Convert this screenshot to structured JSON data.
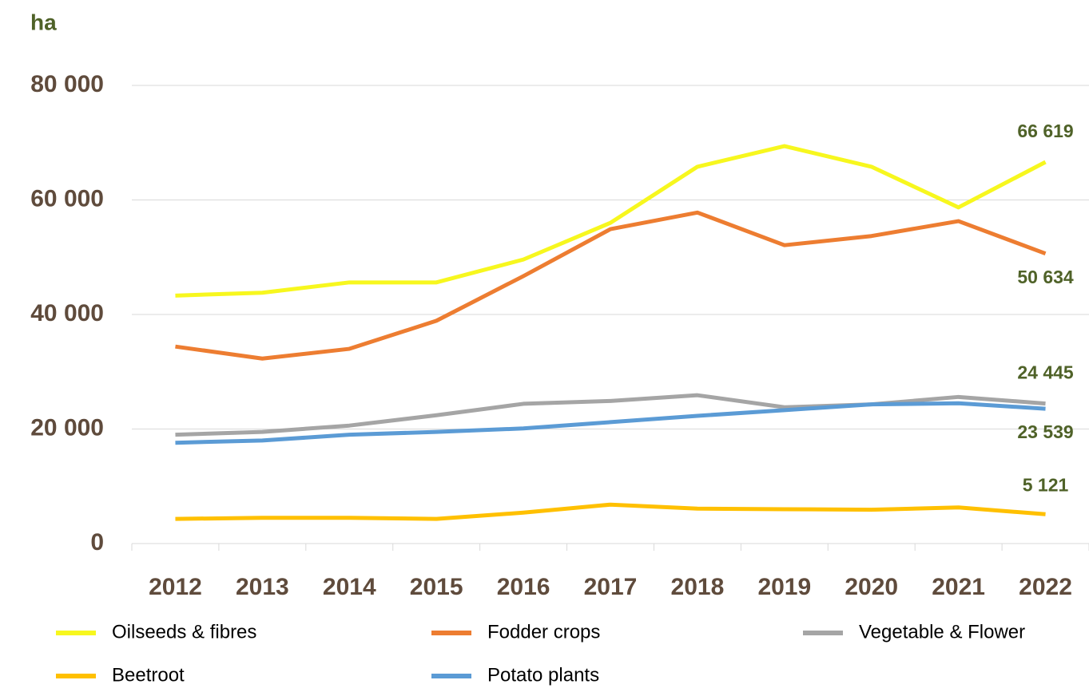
{
  "chart_data": {
    "type": "line",
    "y_axis_label": "ha",
    "categories": [
      "2012",
      "2013",
      "2014",
      "2015",
      "2016",
      "2017",
      "2018",
      "2019",
      "2020",
      "2021",
      "2022"
    ],
    "series": [
      {
        "name": "Oilseeds & fibres",
        "color": "#f7f71e",
        "values": [
          43300,
          43800,
          45600,
          45600,
          49600,
          56000,
          65800,
          69400,
          65800,
          58700,
          66619
        ],
        "value_labels": [
          null,
          null,
          null,
          null,
          null,
          null,
          null,
          null,
          null,
          null,
          "66 619"
        ]
      },
      {
        "name": "Fodder crops",
        "color": "#ed7d31",
        "values": [
          34400,
          32300,
          34000,
          38900,
          46700,
          54900,
          57800,
          52100,
          53700,
          56300,
          50634
        ],
        "value_labels": [
          null,
          null,
          null,
          null,
          null,
          null,
          null,
          null,
          null,
          null,
          "50 634"
        ]
      },
      {
        "name": "Vegetable & Flower",
        "color": "#a5a5a5",
        "values": [
          19000,
          19500,
          20600,
          22400,
          24400,
          24900,
          25900,
          23800,
          24300,
          25600,
          24445
        ],
        "value_labels": [
          null,
          null,
          null,
          null,
          null,
          null,
          null,
          null,
          null,
          null,
          "24 445"
        ]
      },
      {
        "name": "Beetroot",
        "color": "#ffc000",
        "values": [
          4300,
          4500,
          4500,
          4300,
          5400,
          6800,
          6100,
          6000,
          5900,
          6300,
          5121
        ],
        "value_labels": [
          null,
          null,
          null,
          null,
          null,
          null,
          null,
          null,
          null,
          null,
          "5 121"
        ]
      },
      {
        "name": "Potato plants",
        "color": "#5b9bd5",
        "values": [
          17600,
          18000,
          19000,
          19500,
          20100,
          21200,
          22300,
          23300,
          24300,
          24500,
          23539
        ],
        "value_labels": [
          null,
          null,
          null,
          null,
          null,
          null,
          null,
          null,
          null,
          null,
          "23 539"
        ]
      }
    ],
    "ylim": [
      0,
      80000
    ],
    "yticks": [
      0,
      {
        "value": 20000,
        "label": "20 000"
      },
      {
        "value": 40000,
        "label": "40 000"
      },
      {
        "value": 60000,
        "label": "60 000"
      },
      {
        "value": 80000,
        "label": "80 000"
      }
    ],
    "grid": true
  }
}
